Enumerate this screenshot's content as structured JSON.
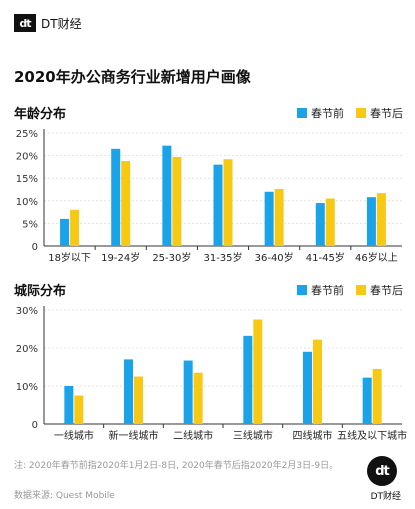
{
  "brand": {
    "mark": "dt",
    "name": "DT财经"
  },
  "title": "2020年办公商务行业新增用户画像",
  "colors": {
    "before": "#1aa3e8",
    "after": "#f7c915"
  },
  "chart_data": [
    {
      "type": "bar",
      "title": "年龄分布",
      "categories": [
        "18岁以下",
        "19-24岁",
        "25-30岁",
        "31-35岁",
        "36-40岁",
        "41-45岁",
        "46岁以上"
      ],
      "series": [
        {
          "name": "春节前",
          "values": [
            6.0,
            21.5,
            22.2,
            18.0,
            12.0,
            9.5,
            10.8
          ]
        },
        {
          "name": "春节后",
          "values": [
            8.0,
            18.8,
            19.7,
            19.2,
            12.6,
            10.5,
            11.7
          ]
        }
      ],
      "yticks": [
        "25%",
        "20%",
        "15%",
        "10%",
        "5%",
        "0"
      ],
      "ylim": [
        0,
        25
      ],
      "legend": "top-right",
      "grid": true
    },
    {
      "type": "bar",
      "title": "城际分布",
      "categories": [
        "一线城市",
        "新一线城市",
        "二线城市",
        "三线城市",
        "四线城市",
        "五线及以下城市"
      ],
      "series": [
        {
          "name": "春节前",
          "values": [
            10.0,
            17.0,
            16.7,
            23.2,
            19.0,
            12.2
          ]
        },
        {
          "name": "春节后",
          "values": [
            7.5,
            12.5,
            13.5,
            27.5,
            22.2,
            14.5
          ]
        }
      ],
      "yticks": [
        "30%",
        "20%",
        "10%",
        "0"
      ],
      "ylim": [
        0,
        30
      ],
      "legend": "top-right",
      "grid": true
    }
  ],
  "footnote": "注: 2020年春节前指2020年1月2日-8日, 2020年春节后指2020年2月3日-9日。",
  "source": "数据来源: Quest Mobile",
  "footer_logo": {
    "mark": "dt",
    "name": "DT财经"
  }
}
